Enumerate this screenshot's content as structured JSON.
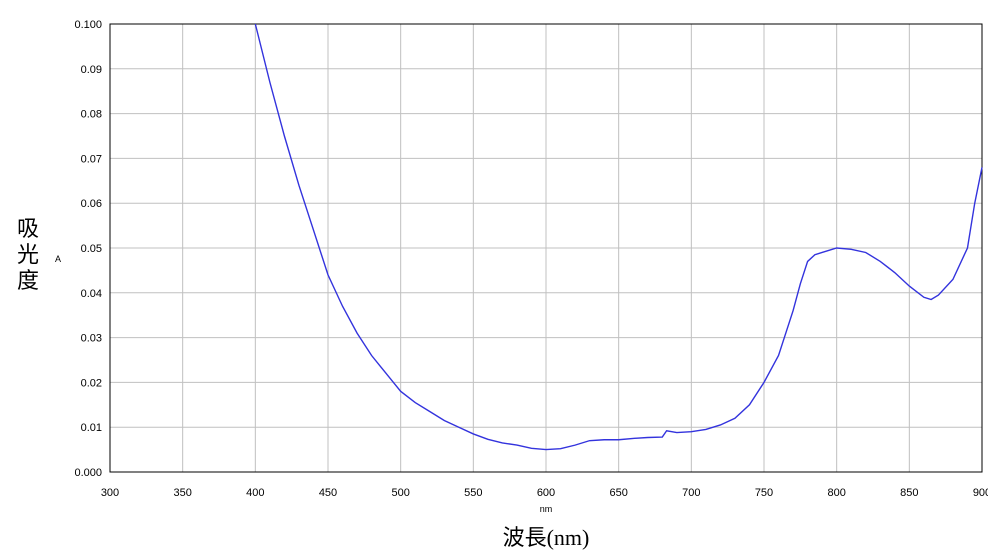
{
  "chart_data": {
    "type": "line",
    "title": "",
    "xlabel": "波長(nm)",
    "xunit": "nm",
    "ylabel": "吸光度",
    "yunit": "A",
    "xlim": [
      300,
      900
    ],
    "ylim": [
      0.0,
      0.1
    ],
    "x_ticks": [
      300,
      350,
      400,
      450,
      500,
      550,
      600,
      650,
      700,
      750,
      800,
      850,
      900
    ],
    "y_ticks": [
      "0.000",
      "0.01",
      "0.02",
      "0.03",
      "0.04",
      "0.05",
      "0.06",
      "0.07",
      "0.08",
      "0.09",
      "0.100"
    ],
    "grid": true,
    "series_color": "#3333dd",
    "series": [
      {
        "x": [
          400,
          410,
          420,
          430,
          440,
          450,
          460,
          470,
          480,
          490,
          500,
          510,
          520,
          530,
          540,
          550,
          560,
          570,
          580,
          590,
          600,
          610,
          620,
          630,
          640,
          650,
          660,
          670,
          680,
          683,
          690,
          700,
          710,
          720,
          730,
          740,
          750,
          760,
          770,
          775,
          780,
          785,
          790,
          800,
          810,
          820,
          830,
          840,
          850,
          860,
          865,
          870,
          880,
          890,
          895,
          900
        ],
        "y": [
          0.1,
          0.087,
          0.075,
          0.064,
          0.054,
          0.044,
          0.037,
          0.031,
          0.026,
          0.022,
          0.018,
          0.0155,
          0.0135,
          0.0115,
          0.01,
          0.0085,
          0.0073,
          0.0065,
          0.006,
          0.0053,
          0.005,
          0.0052,
          0.006,
          0.007,
          0.0072,
          0.0072,
          0.0075,
          0.0077,
          0.0078,
          0.0092,
          0.0088,
          0.009,
          0.0095,
          0.0105,
          0.012,
          0.015,
          0.02,
          0.026,
          0.036,
          0.042,
          0.047,
          0.0485,
          0.049,
          0.05,
          0.0497,
          0.049,
          0.047,
          0.0445,
          0.0415,
          0.039,
          0.0385,
          0.0395,
          0.043,
          0.05,
          0.06,
          0.068
        ]
      }
    ]
  }
}
